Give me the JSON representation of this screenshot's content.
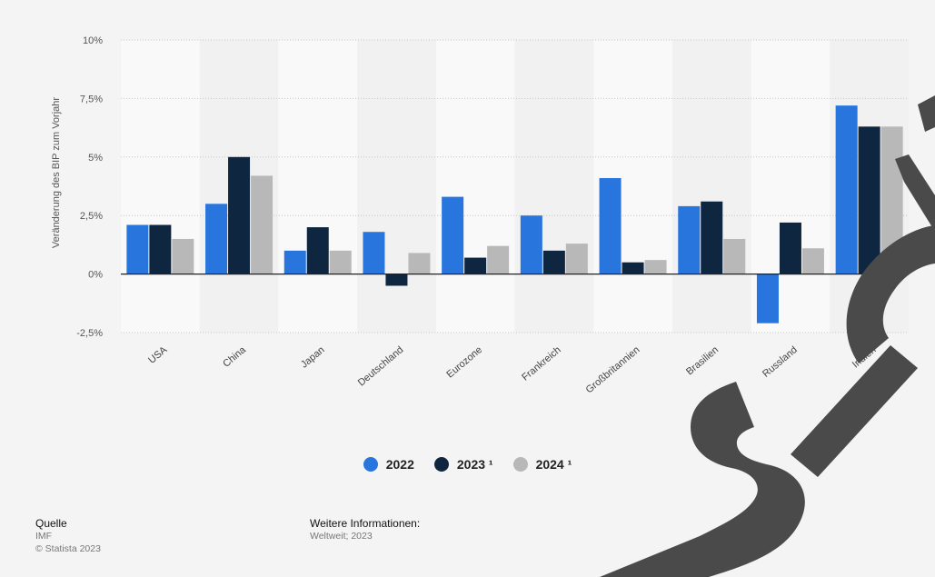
{
  "chart_data": {
    "type": "bar",
    "ylabel": "Veränderung des BIP zum Vorjahr",
    "xlabel": "",
    "title": "",
    "categories": [
      "USA",
      "China",
      "Japan",
      "Deutschland",
      "Eurozone",
      "Frankreich",
      "Großbritannien",
      "Brasilien",
      "Russland",
      "Indien"
    ],
    "series": [
      {
        "name": "2022",
        "color": "#2876dd",
        "values": [
          2.1,
          3.0,
          1.0,
          1.8,
          3.3,
          2.5,
          4.1,
          2.9,
          -2.1,
          7.2
        ]
      },
      {
        "name": "2023 ¹",
        "color": "#0f2641",
        "values": [
          2.1,
          5.0,
          2.0,
          -0.5,
          0.7,
          1.0,
          0.5,
          3.1,
          2.2,
          6.3
        ]
      },
      {
        "name": "2024 ¹",
        "color": "#b8b8b8",
        "values": [
          1.5,
          4.2,
          1.0,
          0.9,
          1.2,
          1.3,
          0.6,
          1.5,
          1.1,
          6.3
        ]
      }
    ],
    "ylim": [
      -2.5,
      10
    ],
    "yticks": [
      10,
      7.5,
      5,
      2.5,
      0,
      -2.5
    ],
    "ytick_labels": [
      "10%",
      "7,5%",
      "5%",
      "2,5%",
      "0%",
      "-2,5%"
    ],
    "grid": true,
    "legend_position": "bottom-center"
  },
  "legend": {
    "items": [
      {
        "label": "2022",
        "color": "#2876dd"
      },
      {
        "label": "2023 ¹",
        "color": "#0f2641"
      },
      {
        "label": "2024 ¹",
        "color": "#b8b8b8"
      }
    ]
  },
  "source": {
    "title": "Quelle",
    "line1": "IMF",
    "line2": "© Statista 2023"
  },
  "info": {
    "title": "Weitere Informationen:",
    "line1": "Weltweit; 2023"
  },
  "colors": {
    "background": "#f4f4f4",
    "plot_background": "#f9f9f9",
    "band_background": "#f1f1f1",
    "watermark": "#000000"
  }
}
